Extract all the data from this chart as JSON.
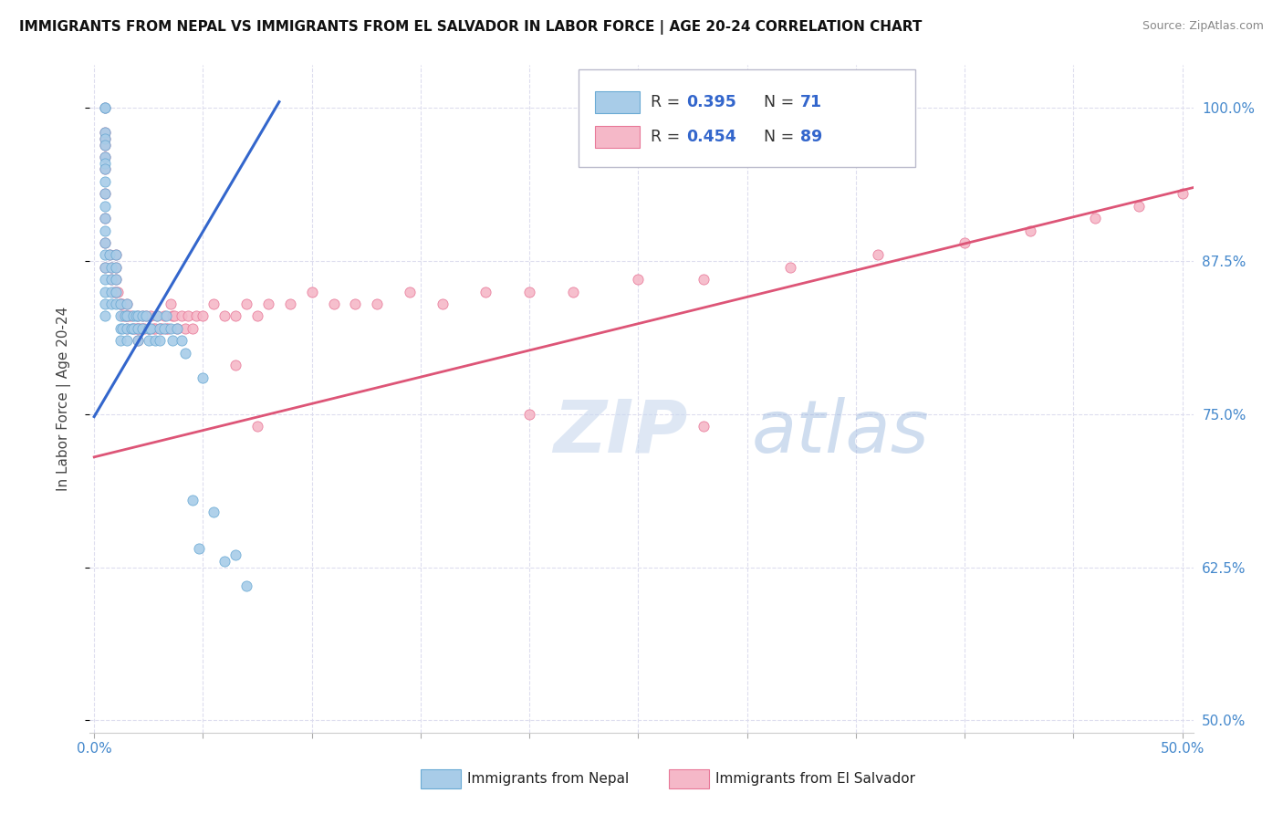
{
  "title": "IMMIGRANTS FROM NEPAL VS IMMIGRANTS FROM EL SALVADOR IN LABOR FORCE | AGE 20-24 CORRELATION CHART",
  "source": "Source: ZipAtlas.com",
  "ylabel": "In Labor Force | Age 20-24",
  "ytick_labels": [
    "100.0%",
    "87.5%",
    "75.0%",
    "62.5%",
    "50.0%"
  ],
  "ytick_values": [
    1.0,
    0.875,
    0.75,
    0.625,
    0.5
  ],
  "xmin": -0.002,
  "xmax": 0.505,
  "ymin": 0.49,
  "ymax": 1.035,
  "nepal_color": "#a8cce8",
  "nepal_edge": "#6aaad4",
  "salvador_color": "#f5b8c8",
  "salvador_edge": "#e87898",
  "nepal_line_color": "#3366cc",
  "salvador_line_color": "#dd5577",
  "legend_R_nepal": "0.395",
  "legend_N_nepal": "71",
  "legend_R_salvador": "0.454",
  "legend_N_salvador": "89",
  "right_axis_color": "#4488cc",
  "background_color": "#ffffff",
  "grid_color": "#ddddee",
  "marker_size": 65,
  "nepal_line_x": [
    0.0,
    0.085
  ],
  "nepal_line_y": [
    0.748,
    1.005
  ],
  "salvador_line_x": [
    0.0,
    0.505
  ],
  "salvador_line_y": [
    0.715,
    0.935
  ],
  "nepal_x": [
    0.005,
    0.005,
    0.005,
    0.005,
    0.005,
    0.005,
    0.005,
    0.005,
    0.005,
    0.005,
    0.005,
    0.005,
    0.005,
    0.005,
    0.005,
    0.005,
    0.005,
    0.005,
    0.005,
    0.005,
    0.007,
    0.008,
    0.008,
    0.008,
    0.008,
    0.01,
    0.01,
    0.01,
    0.01,
    0.01,
    0.012,
    0.012,
    0.012,
    0.012,
    0.013,
    0.014,
    0.015,
    0.015,
    0.015,
    0.015,
    0.017,
    0.018,
    0.018,
    0.019,
    0.02,
    0.02,
    0.02,
    0.022,
    0.022,
    0.024,
    0.025,
    0.025,
    0.026,
    0.028,
    0.029,
    0.03,
    0.03,
    0.032,
    0.033,
    0.035,
    0.036,
    0.038,
    0.04,
    0.042,
    0.045,
    0.048,
    0.05,
    0.055,
    0.06,
    0.065,
    0.07
  ],
  "nepal_y": [
    1.0,
    1.0,
    0.98,
    0.975,
    0.97,
    0.96,
    0.955,
    0.95,
    0.94,
    0.93,
    0.92,
    0.91,
    0.9,
    0.89,
    0.88,
    0.87,
    0.86,
    0.85,
    0.84,
    0.83,
    0.88,
    0.87,
    0.86,
    0.85,
    0.84,
    0.88,
    0.87,
    0.86,
    0.85,
    0.84,
    0.84,
    0.83,
    0.82,
    0.81,
    0.82,
    0.83,
    0.84,
    0.83,
    0.82,
    0.81,
    0.82,
    0.83,
    0.82,
    0.83,
    0.83,
    0.82,
    0.81,
    0.83,
    0.82,
    0.83,
    0.82,
    0.81,
    0.82,
    0.81,
    0.83,
    0.82,
    0.81,
    0.82,
    0.83,
    0.82,
    0.81,
    0.82,
    0.81,
    0.8,
    0.68,
    0.64,
    0.78,
    0.67,
    0.63,
    0.635,
    0.61
  ],
  "salvador_x": [
    0.005,
    0.005,
    0.005,
    0.005,
    0.005,
    0.005,
    0.005,
    0.005,
    0.005,
    0.005,
    0.007,
    0.008,
    0.008,
    0.009,
    0.01,
    0.01,
    0.01,
    0.01,
    0.011,
    0.012,
    0.012,
    0.013,
    0.013,
    0.014,
    0.015,
    0.015,
    0.015,
    0.016,
    0.017,
    0.018,
    0.019,
    0.02,
    0.02,
    0.02,
    0.021,
    0.022,
    0.022,
    0.023,
    0.024,
    0.025,
    0.025,
    0.026,
    0.027,
    0.028,
    0.029,
    0.03,
    0.031,
    0.032,
    0.033,
    0.034,
    0.035,
    0.036,
    0.037,
    0.038,
    0.04,
    0.042,
    0.043,
    0.045,
    0.047,
    0.05,
    0.055,
    0.06,
    0.065,
    0.07,
    0.075,
    0.08,
    0.09,
    0.1,
    0.11,
    0.12,
    0.13,
    0.145,
    0.16,
    0.18,
    0.2,
    0.22,
    0.25,
    0.28,
    0.32,
    0.36,
    0.4,
    0.43,
    0.46,
    0.48,
    0.5,
    0.065,
    0.075,
    0.2,
    0.28
  ],
  "salvador_y": [
    1.0,
    0.98,
    0.975,
    0.97,
    0.96,
    0.95,
    0.93,
    0.91,
    0.89,
    0.87,
    0.88,
    0.87,
    0.86,
    0.85,
    0.88,
    0.87,
    0.86,
    0.85,
    0.85,
    0.84,
    0.84,
    0.84,
    0.83,
    0.83,
    0.84,
    0.83,
    0.82,
    0.83,
    0.83,
    0.82,
    0.82,
    0.83,
    0.82,
    0.81,
    0.82,
    0.83,
    0.82,
    0.82,
    0.83,
    0.82,
    0.82,
    0.83,
    0.82,
    0.82,
    0.83,
    0.82,
    0.82,
    0.83,
    0.82,
    0.82,
    0.84,
    0.83,
    0.83,
    0.82,
    0.83,
    0.82,
    0.83,
    0.82,
    0.83,
    0.83,
    0.84,
    0.83,
    0.83,
    0.84,
    0.83,
    0.84,
    0.84,
    0.85,
    0.84,
    0.84,
    0.84,
    0.85,
    0.84,
    0.85,
    0.85,
    0.85,
    0.86,
    0.86,
    0.87,
    0.88,
    0.89,
    0.9,
    0.91,
    0.92,
    0.93,
    0.79,
    0.74,
    0.75,
    0.74
  ]
}
